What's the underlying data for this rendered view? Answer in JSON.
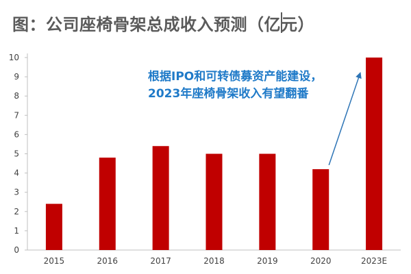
{
  "title": "图：公司座椅骨架总成收入预测（亿元）",
  "annotation": {
    "line1": "根据IPO和可转债募资产能建设，",
    "line2": "2023年座椅骨架收入有望翻番"
  },
  "colors": {
    "bar": "#c00000",
    "arrow": "#2e75b6",
    "annotation": "#1f7ac8"
  },
  "chart_data": {
    "type": "bar",
    "title": "图：公司座椅骨架总成收入预测（亿元）",
    "categories": [
      "2015",
      "2016",
      "2017",
      "2018",
      "2019",
      "2020",
      "2023E"
    ],
    "values": [
      2.4,
      4.8,
      5.4,
      5.0,
      5.0,
      4.2,
      10.0
    ],
    "xlabel": "",
    "ylabel": "",
    "ylim": [
      0,
      10
    ],
    "yticks": [
      "0",
      "1",
      "2",
      "3",
      "4",
      "5",
      "6",
      "7",
      "8",
      "9",
      "10"
    ],
    "grid": false,
    "legend": "none",
    "arrow": {
      "from_category": "2020",
      "to_category": "2023E"
    }
  }
}
